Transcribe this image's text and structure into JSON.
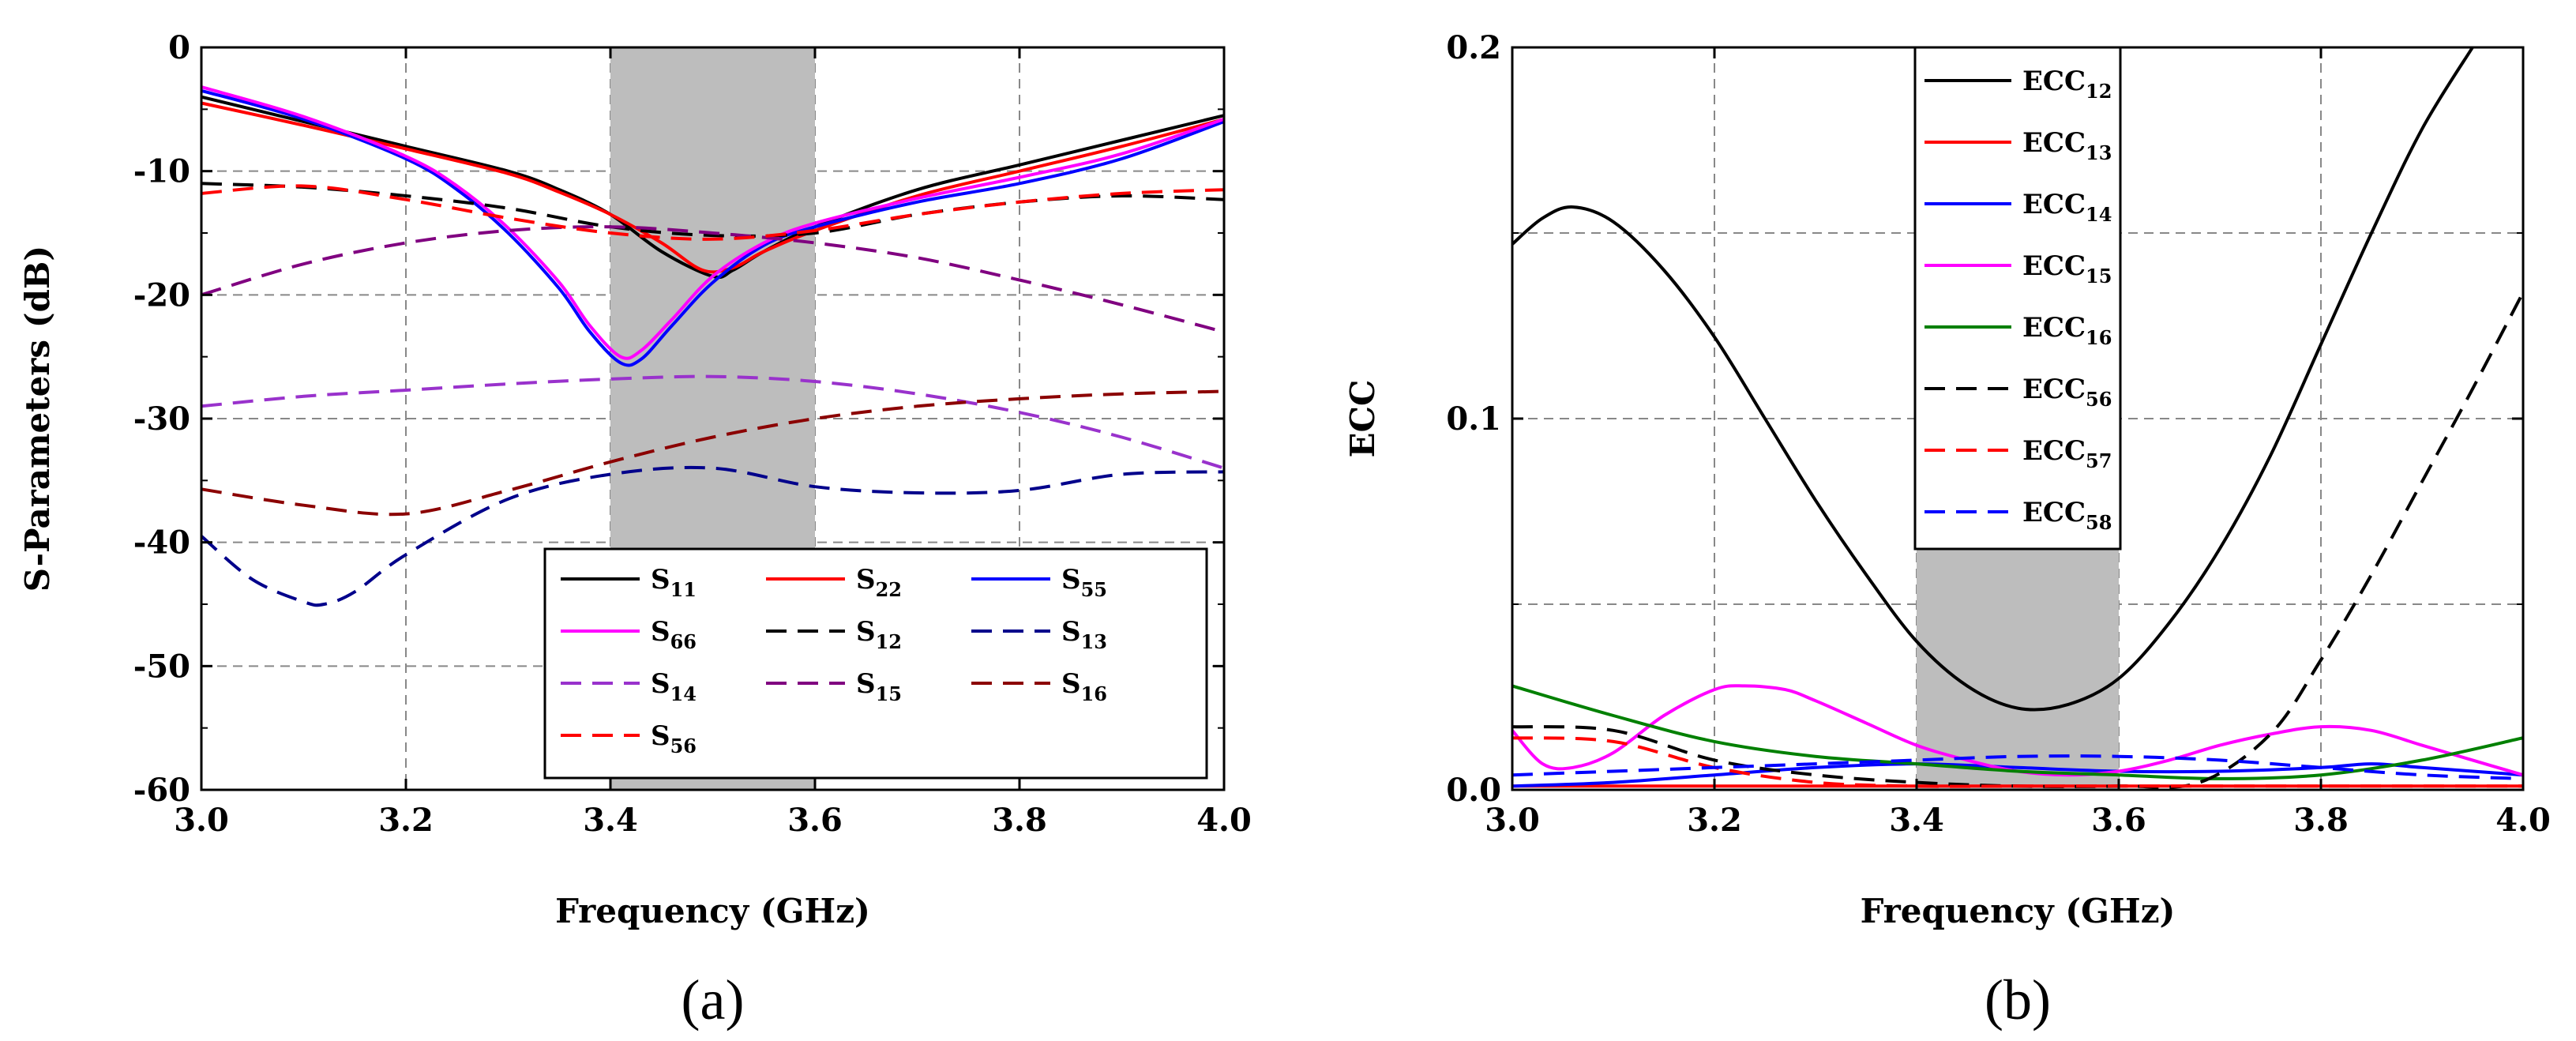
{
  "chart_data": [
    {
      "id": "a",
      "type": "line",
      "caption": "(a)",
      "xlabel": "Frequency (GHz)",
      "ylabel": "S-Parameters (dB)",
      "xlim": [
        3.0,
        4.0
      ],
      "ylim": [
        -60,
        0
      ],
      "xticks": [
        "3.0",
        "3.2",
        "3.4",
        "3.6",
        "3.8",
        "4.0"
      ],
      "yticks": [
        "0",
        "-10",
        "-20",
        "-30",
        "-40",
        "-50",
        "-60"
      ],
      "grid": true,
      "shaded_band": [
        3.4,
        3.6
      ],
      "legend_position": "bottom-right",
      "series": [
        {
          "name": "S11",
          "base": "S",
          "sub": "11",
          "color": "#000000",
          "dash": false,
          "x": [
            3.0,
            3.1,
            3.2,
            3.3,
            3.35,
            3.4,
            3.45,
            3.5,
            3.52,
            3.55,
            3.6,
            3.7,
            3.8,
            3.9,
            4.0
          ],
          "y": [
            -4,
            -6,
            -8,
            -10,
            -11.5,
            -13.5,
            -16.5,
            -18.5,
            -18,
            -16.5,
            -14.5,
            -11.5,
            -9.5,
            -7.5,
            -5.5
          ]
        },
        {
          "name": "S22",
          "base": "S",
          "sub": "22",
          "color": "#ff0000",
          "dash": false,
          "x": [
            3.0,
            3.1,
            3.2,
            3.3,
            3.35,
            3.4,
            3.45,
            3.49,
            3.52,
            3.55,
            3.6,
            3.7,
            3.8,
            3.9,
            4.0
          ],
          "y": [
            -4.5,
            -6.3,
            -8.2,
            -10.2,
            -11.7,
            -13.5,
            -15.8,
            -18,
            -17.8,
            -16.5,
            -14.8,
            -12,
            -10,
            -8,
            -5.8
          ]
        },
        {
          "name": "S55",
          "base": "S",
          "sub": "55",
          "color": "#0000ff",
          "dash": false,
          "x": [
            3.0,
            3.1,
            3.2,
            3.25,
            3.3,
            3.35,
            3.38,
            3.41,
            3.43,
            3.46,
            3.5,
            3.55,
            3.6,
            3.7,
            3.8,
            3.9,
            4.0
          ],
          "y": [
            -3.5,
            -5.8,
            -9,
            -11.5,
            -15,
            -19.5,
            -23,
            -25.5,
            -25.2,
            -22.5,
            -19,
            -16,
            -14.5,
            -12.5,
            -11,
            -9,
            -6
          ]
        },
        {
          "name": "S66",
          "base": "S",
          "sub": "66",
          "color": "#ff00ff",
          "dash": false,
          "x": [
            3.0,
            3.1,
            3.2,
            3.25,
            3.3,
            3.35,
            3.38,
            3.41,
            3.43,
            3.46,
            3.5,
            3.55,
            3.6,
            3.7,
            3.8,
            3.9,
            4.0
          ],
          "y": [
            -3.2,
            -5.6,
            -8.8,
            -11.2,
            -14.6,
            -19,
            -22.5,
            -25,
            -24.5,
            -22,
            -18.5,
            -15.8,
            -14.2,
            -12.2,
            -10.5,
            -8.6,
            -5.8
          ]
        },
        {
          "name": "S12",
          "base": "S",
          "sub": "12",
          "color": "#000000",
          "dash": true,
          "x": [
            3.0,
            3.1,
            3.2,
            3.3,
            3.4,
            3.5,
            3.6,
            3.7,
            3.8,
            3.9,
            4.0
          ],
          "y": [
            -11,
            -11.3,
            -12,
            -13,
            -14.5,
            -15.2,
            -15,
            -13.5,
            -12.5,
            -12,
            -12.3
          ]
        },
        {
          "name": "S13",
          "base": "S",
          "sub": "13",
          "color": "#00008b",
          "dash": true,
          "x": [
            3.0,
            3.05,
            3.1,
            3.12,
            3.15,
            3.2,
            3.3,
            3.4,
            3.5,
            3.6,
            3.7,
            3.8,
            3.9,
            4.0
          ],
          "y": [
            -39.5,
            -43,
            -44.8,
            -45,
            -44,
            -41,
            -36.5,
            -34.5,
            -34,
            -35.5,
            -36,
            -35.8,
            -34.5,
            -34.3
          ]
        },
        {
          "name": "S14",
          "base": "S",
          "sub": "14",
          "color": "#9932cc",
          "dash": true,
          "x": [
            3.0,
            3.1,
            3.2,
            3.3,
            3.4,
            3.5,
            3.6,
            3.7,
            3.8,
            3.9,
            4.0
          ],
          "y": [
            -29,
            -28.2,
            -27.7,
            -27.2,
            -26.8,
            -26.6,
            -27,
            -28,
            -29.5,
            -31.5,
            -34
          ]
        },
        {
          "name": "S15",
          "base": "S",
          "sub": "15",
          "color": "#800080",
          "dash": true,
          "x": [
            3.0,
            3.1,
            3.2,
            3.3,
            3.4,
            3.5,
            3.6,
            3.7,
            3.8,
            3.9,
            4.0
          ],
          "y": [
            -20,
            -17.5,
            -15.8,
            -14.8,
            -14.5,
            -15,
            -15.8,
            -17,
            -18.8,
            -20.8,
            -23
          ]
        },
        {
          "name": "S16",
          "base": "S",
          "sub": "16",
          "color": "#8b0000",
          "dash": true,
          "x": [
            3.0,
            3.1,
            3.2,
            3.3,
            3.4,
            3.5,
            3.6,
            3.7,
            3.8,
            3.9,
            4.0
          ],
          "y": [
            -35.7,
            -37,
            -37.7,
            -35.8,
            -33.5,
            -31.5,
            -30,
            -29,
            -28.4,
            -28,
            -27.8
          ]
        },
        {
          "name": "S56",
          "base": "S",
          "sub": "56",
          "color": "#ff0000",
          "dash": true,
          "x": [
            3.0,
            3.1,
            3.2,
            3.3,
            3.4,
            3.5,
            3.6,
            3.7,
            3.8,
            3.9,
            4.0
          ],
          "y": [
            -11.8,
            -11.2,
            -12.3,
            -13.8,
            -15,
            -15.5,
            -14.8,
            -13.5,
            -12.5,
            -11.8,
            -11.5
          ]
        }
      ]
    },
    {
      "id": "b",
      "type": "line",
      "caption": "(b)",
      "xlabel": "Frequency (GHz)",
      "ylabel": "ECC",
      "xlim": [
        3.0,
        4.0
      ],
      "ylim": [
        0,
        0.2
      ],
      "xticks": [
        "3.0",
        "3.2",
        "3.4",
        "3.6",
        "3.8",
        "4.0"
      ],
      "yticks": [
        "0.0",
        "0.1",
        "0.2"
      ],
      "grid": true,
      "shaded_band": [
        3.4,
        3.6
      ],
      "legend_position": "top-left",
      "series": [
        {
          "name": "ECC12",
          "base": "ECC",
          "sub": "12",
          "color": "#000000",
          "dash": false,
          "x": [
            3.0,
            3.03,
            3.06,
            3.1,
            3.15,
            3.2,
            3.25,
            3.3,
            3.35,
            3.4,
            3.45,
            3.5,
            3.55,
            3.6,
            3.65,
            3.7,
            3.75,
            3.8,
            3.85,
            3.9,
            3.95
          ],
          "y": [
            0.147,
            0.154,
            0.157,
            0.153,
            0.14,
            0.122,
            0.1,
            0.078,
            0.058,
            0.04,
            0.028,
            0.022,
            0.023,
            0.03,
            0.045,
            0.065,
            0.09,
            0.12,
            0.15,
            0.178,
            0.2
          ]
        },
        {
          "name": "ECC13",
          "base": "ECC",
          "sub": "13",
          "color": "#ff0000",
          "dash": false,
          "x": [
            3.0,
            3.2,
            3.4,
            3.6,
            3.8,
            4.0
          ],
          "y": [
            0.001,
            0.001,
            0.001,
            0.001,
            0.001,
            0.001
          ]
        },
        {
          "name": "ECC14",
          "base": "ECC",
          "sub": "14",
          "color": "#0000ff",
          "dash": false,
          "x": [
            3.0,
            3.1,
            3.2,
            3.3,
            3.4,
            3.5,
            3.6,
            3.7,
            3.8,
            3.85,
            3.9,
            4.0
          ],
          "y": [
            0.001,
            0.002,
            0.004,
            0.006,
            0.007,
            0.006,
            0.005,
            0.005,
            0.006,
            0.007,
            0.006,
            0.004
          ]
        },
        {
          "name": "ECC15",
          "base": "ECC",
          "sub": "15",
          "color": "#ff00ff",
          "dash": false,
          "x": [
            3.0,
            3.03,
            3.06,
            3.1,
            3.15,
            3.2,
            3.23,
            3.27,
            3.3,
            3.35,
            3.4,
            3.45,
            3.5,
            3.55,
            3.6,
            3.65,
            3.7,
            3.75,
            3.8,
            3.85,
            3.9,
            3.95,
            4.0
          ],
          "y": [
            0.016,
            0.007,
            0.006,
            0.01,
            0.02,
            0.027,
            0.028,
            0.027,
            0.024,
            0.018,
            0.012,
            0.008,
            0.005,
            0.004,
            0.005,
            0.008,
            0.012,
            0.015,
            0.017,
            0.016,
            0.012,
            0.008,
            0.004
          ]
        },
        {
          "name": "ECC16",
          "base": "ECC",
          "sub": "16",
          "color": "#008000",
          "dash": false,
          "x": [
            3.0,
            3.1,
            3.2,
            3.3,
            3.4,
            3.5,
            3.6,
            3.7,
            3.8,
            3.9,
            4.0
          ],
          "y": [
            0.028,
            0.02,
            0.013,
            0.009,
            0.007,
            0.005,
            0.004,
            0.003,
            0.004,
            0.008,
            0.014
          ]
        },
        {
          "name": "ECC56",
          "base": "ECC",
          "sub": "56",
          "color": "#000000",
          "dash": true,
          "x": [
            3.0,
            3.1,
            3.2,
            3.3,
            3.4,
            3.5,
            3.6,
            3.68,
            3.75,
            3.8,
            3.85,
            3.9,
            3.95,
            4.0
          ],
          "y": [
            0.017,
            0.016,
            0.008,
            0.004,
            0.002,
            0.001,
            0.001,
            0.002,
            0.015,
            0.035,
            0.058,
            0.083,
            0.108,
            0.134
          ]
        },
        {
          "name": "ECC57",
          "base": "ECC",
          "sub": "57",
          "color": "#ff0000",
          "dash": true,
          "x": [
            3.0,
            3.1,
            3.2,
            3.3,
            3.4,
            3.5,
            3.6,
            3.7,
            3.8,
            3.9,
            4.0
          ],
          "y": [
            0.014,
            0.013,
            0.006,
            0.002,
            0.001,
            0.001,
            0.001,
            0.001,
            0.001,
            0.001,
            0.001
          ]
        },
        {
          "name": "ECC58",
          "base": "ECC",
          "sub": "58",
          "color": "#0000ff",
          "dash": true,
          "x": [
            3.0,
            3.1,
            3.2,
            3.3,
            3.4,
            3.5,
            3.6,
            3.7,
            3.8,
            3.9,
            4.0
          ],
          "y": [
            0.004,
            0.005,
            0.006,
            0.007,
            0.008,
            0.009,
            0.009,
            0.008,
            0.006,
            0.004,
            0.003
          ]
        }
      ]
    }
  ]
}
